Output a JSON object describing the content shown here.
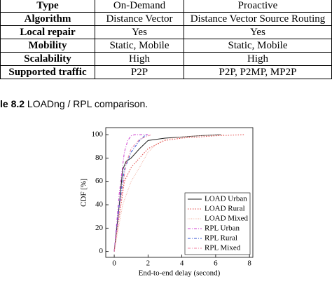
{
  "table": {
    "rows": [
      [
        "Type",
        "On-Demand",
        "Proactive"
      ],
      [
        "Algorithm",
        "Distance Vector",
        "Distance Vector Source Routing"
      ],
      [
        "Local repair",
        "Yes",
        "Yes"
      ],
      [
        "Mobility",
        "Static, Mobile",
        "Static, Mobile"
      ],
      [
        "Scalability",
        "High",
        "High"
      ],
      [
        "Supported traffic",
        "P2P",
        "P2P, P2MP, MP2P"
      ]
    ]
  },
  "caption": {
    "label": "le 8.2",
    "text": "LOADng / RPL comparison."
  },
  "chart_data": {
    "type": "line",
    "xlabel": "End-to-end delay (second)",
    "ylabel": "CDF [%]",
    "xlim": [
      -0.5,
      8.2
    ],
    "ylim": [
      -5,
      106
    ],
    "xticks": [
      0,
      2,
      4,
      6,
      8
    ],
    "yticks": [
      0,
      20,
      40,
      60,
      80,
      100
    ],
    "legend": "lower right",
    "series": [
      {
        "name": "LOAD Urban",
        "color": "#222222",
        "dash": "none",
        "x": [
          0,
          0.3,
          0.5,
          0.7,
          1,
          1.5,
          2,
          3,
          4,
          5,
          6.3
        ],
        "values": [
          0,
          40,
          70,
          77,
          80,
          88,
          95,
          97,
          98,
          99,
          100
        ]
      },
      {
        "name": "LOAD Rural",
        "color": "#e04040",
        "dash": "1.5 2",
        "x": [
          0,
          0.3,
          0.6,
          1,
          1.5,
          2,
          3,
          4,
          5,
          6,
          7.7
        ],
        "values": [
          0,
          30,
          60,
          72,
          80,
          88,
          95,
          97,
          98,
          99,
          100
        ]
      },
      {
        "name": "LOAD Mixed",
        "color": "#f0b0a0",
        "dash": "1 1.5",
        "x": [
          0,
          0.5,
          1,
          1.5,
          2,
          2.5,
          3,
          4,
          5,
          6.5
        ],
        "values": [
          0,
          40,
          60,
          72,
          85,
          92,
          96,
          98,
          99,
          100
        ]
      },
      {
        "name": "RPL Urban",
        "color": "#d040d0",
        "dash": "4 2 1 2",
        "x": [
          0,
          0.3,
          0.6,
          0.8,
          1,
          1.2,
          2
        ],
        "values": [
          0,
          50,
          85,
          95,
          99,
          100,
          100
        ]
      },
      {
        "name": "RPL Rural",
        "color": "#3050d0",
        "dash": "4 2 1 2",
        "x": [
          0,
          0.3,
          0.6,
          1,
          1.5,
          1.8,
          2
        ],
        "values": [
          0,
          40,
          70,
          85,
          95,
          99,
          100
        ]
      },
      {
        "name": "RPL Mixed",
        "color": "#f080a0",
        "dash": "4 2 1 2",
        "x": [
          0,
          0.4,
          0.7,
          1,
          1.5,
          2.2
        ],
        "values": [
          0,
          45,
          75,
          88,
          96,
          100
        ]
      }
    ]
  }
}
